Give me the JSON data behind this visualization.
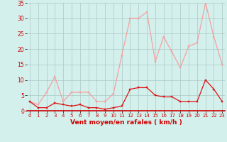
{
  "x": [
    0,
    1,
    2,
    3,
    4,
    5,
    6,
    7,
    8,
    9,
    10,
    11,
    12,
    13,
    14,
    15,
    16,
    17,
    18,
    19,
    20,
    21,
    22,
    23
  ],
  "wind_avg": [
    3,
    1,
    1,
    2.5,
    2,
    1.5,
    2,
    1,
    1,
    0.5,
    1,
    1.5,
    7,
    7.5,
    7.5,
    5,
    4.5,
    4.5,
    3,
    3,
    3,
    10,
    7,
    3
  ],
  "wind_gust": [
    3,
    2,
    6,
    11,
    3,
    6,
    6,
    6,
    3,
    3,
    5.5,
    18,
    30,
    30,
    32,
    16,
    24,
    19,
    14,
    21,
    22,
    35,
    24,
    15
  ],
  "line_avg_color": "#dd1111",
  "line_gust_color": "#f5a0a0",
  "background_color": "#d4f0ec",
  "grid_color": "#aac8c4",
  "axis_color": "#cc0000",
  "xlabel": "Vent moyen/en rafales ( km/h )",
  "ylim": [
    0,
    35
  ],
  "yticks": [
    0,
    5,
    10,
    15,
    20,
    25,
    30,
    35
  ],
  "xticks": [
    0,
    1,
    2,
    3,
    4,
    5,
    6,
    7,
    8,
    9,
    10,
    11,
    12,
    13,
    14,
    15,
    16,
    17,
    18,
    19,
    20,
    21,
    22,
    23
  ]
}
